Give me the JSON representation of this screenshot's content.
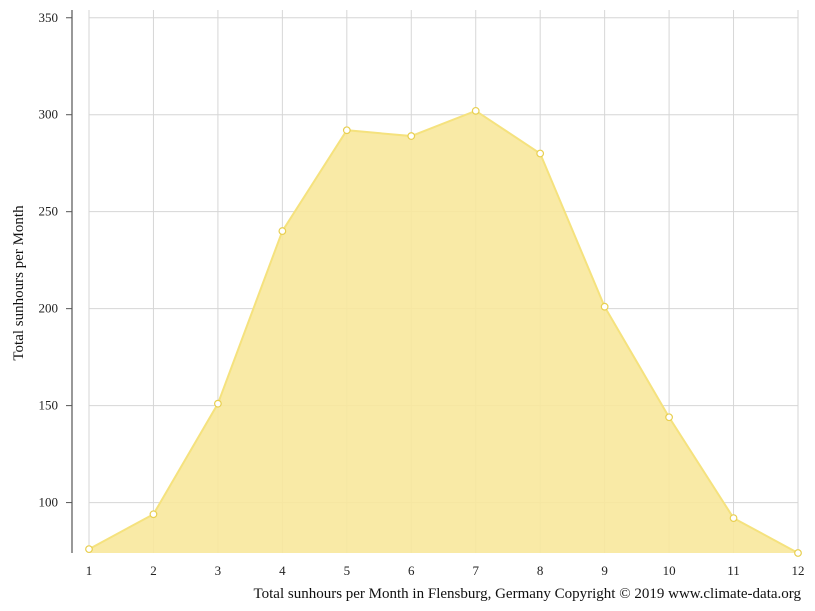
{
  "chart_data": {
    "type": "area",
    "title": "",
    "caption": "Total sunhours per Month in Flensburg, Germany Copyright © 2019 www.climate-data.org",
    "xlabel": "",
    "ylabel": "Total sunhours per Month",
    "x": [
      1,
      2,
      3,
      4,
      5,
      6,
      7,
      8,
      9,
      10,
      11,
      12
    ],
    "series": [
      {
        "values": [
          76,
          94,
          151,
          240,
          292,
          289,
          302,
          280,
          201,
          144,
          92,
          74
        ]
      }
    ],
    "xlim": [
      1,
      12
    ],
    "ylim": [
      74,
      354
    ],
    "yticks": [
      100,
      150,
      200,
      250,
      300,
      350
    ],
    "grid": true,
    "legend": "none",
    "colors": {
      "fill": "#f8e89c",
      "line": "#f5e27e",
      "marker_fill": "#ffffff",
      "marker_stroke": "#e8cf50",
      "grid": "#d6d6d6",
      "axis": "#555555"
    }
  }
}
